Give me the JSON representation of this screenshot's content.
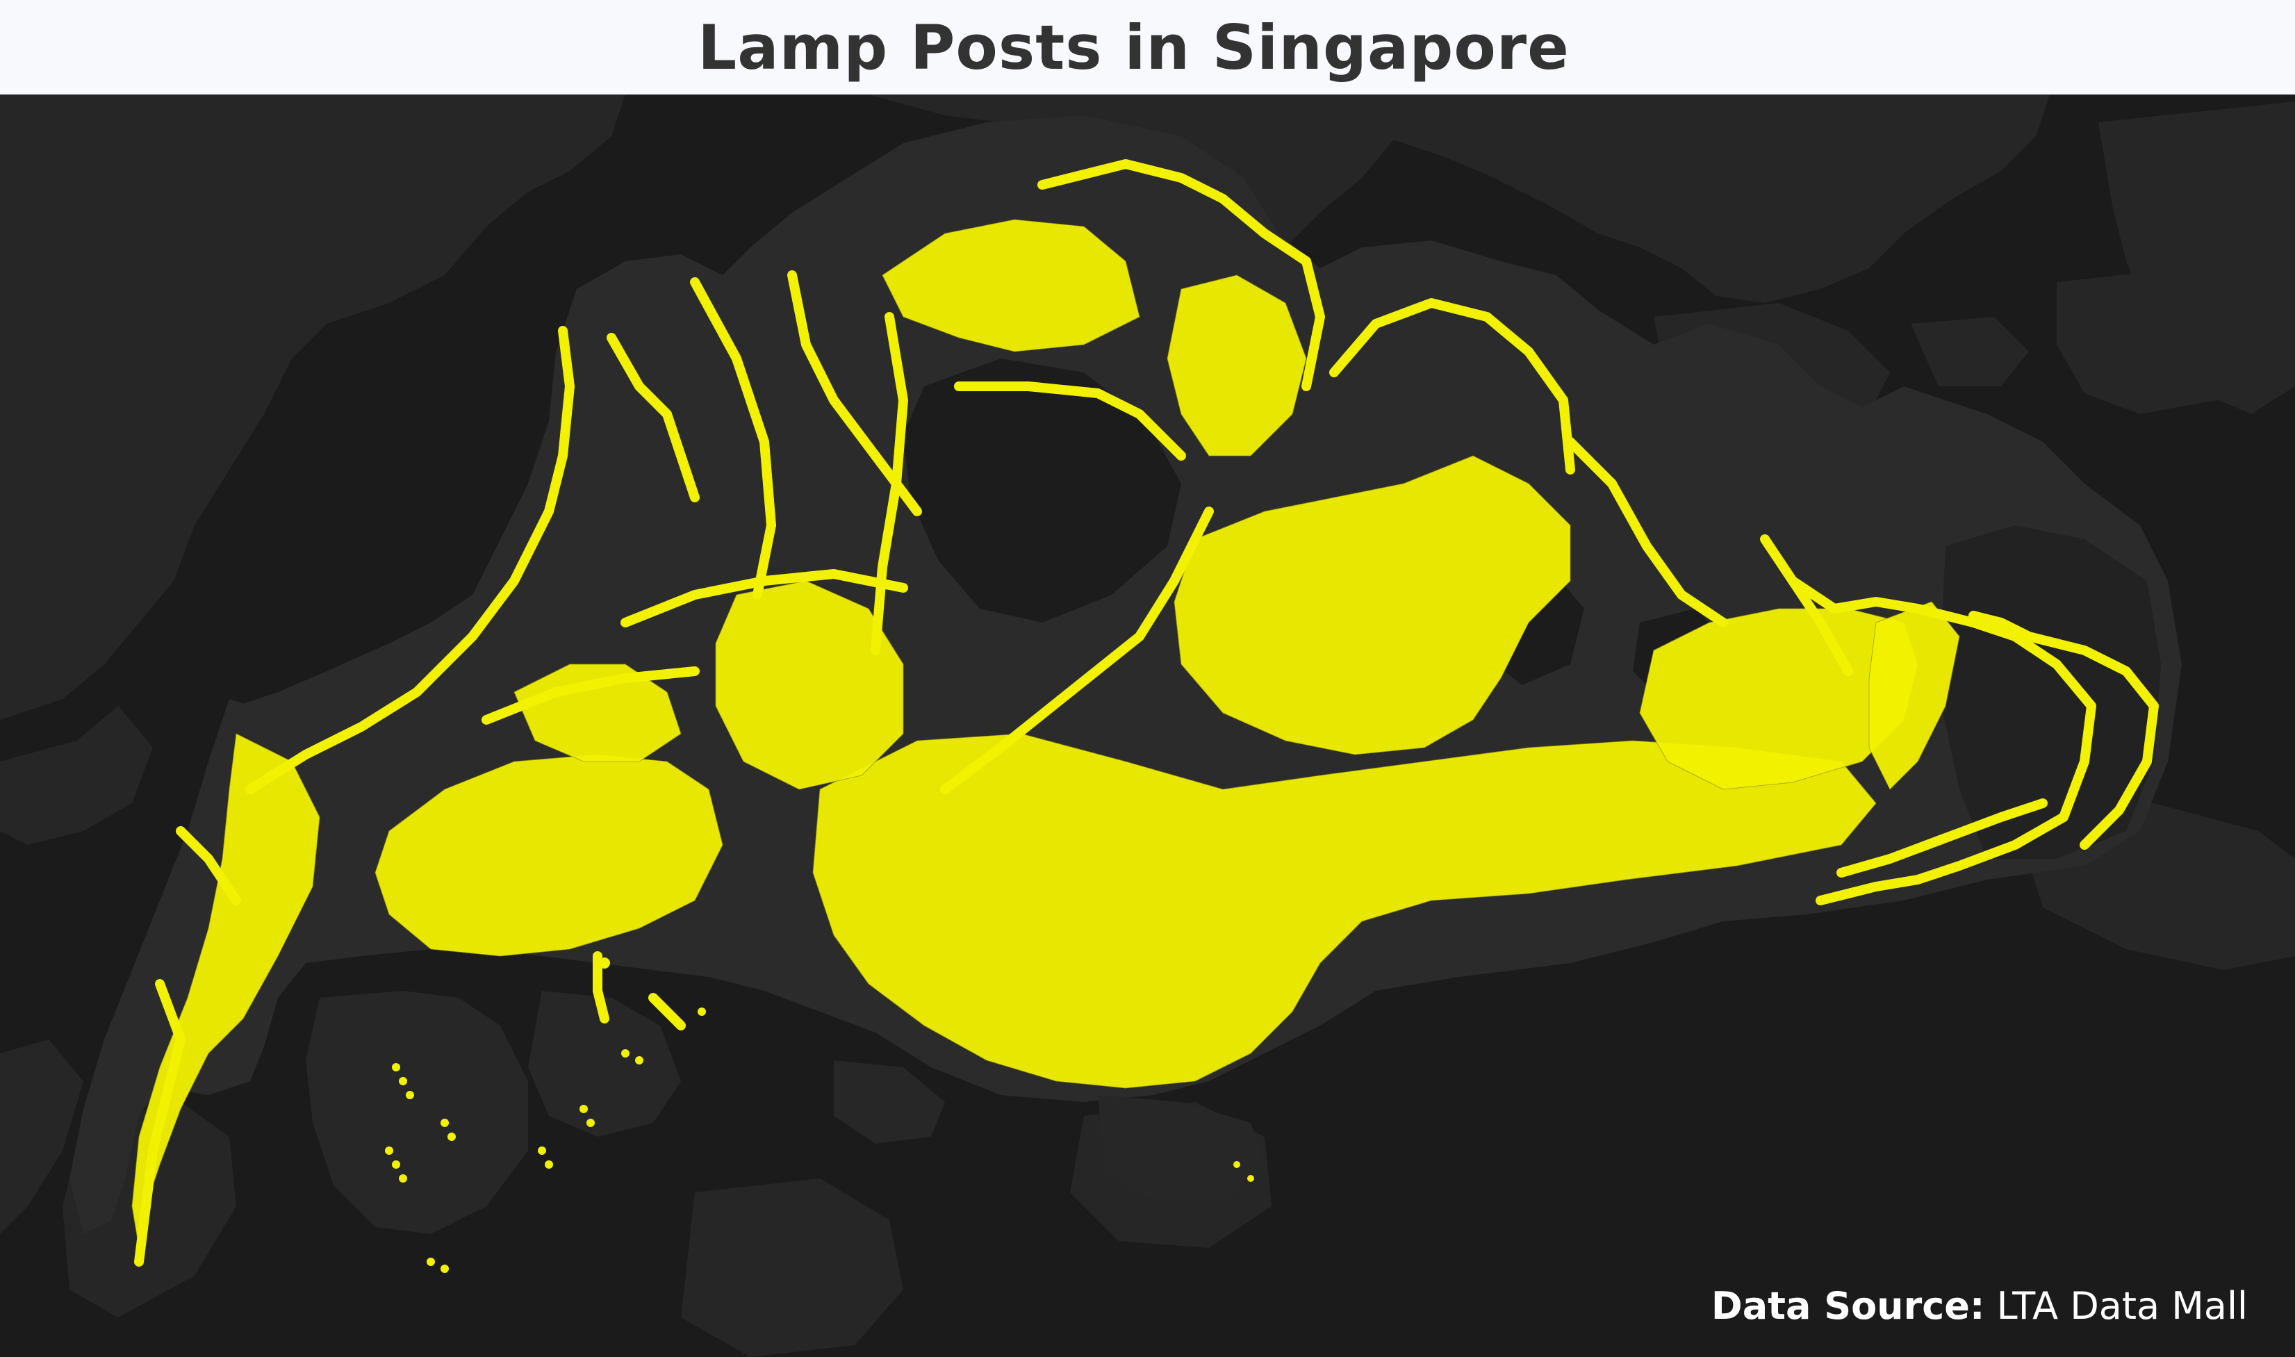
{
  "title": "Lamp Posts in Singapore",
  "source": {
    "label": "Data Source:",
    "value": "LTA Data Mall"
  },
  "colors": {
    "basemap_background": "#1f1f1f",
    "landmass": "#2a2a2a",
    "water": "#171717",
    "lamp_post_points": "#f2f200",
    "title_text": "#333333",
    "title_background": "#f7f9fd"
  },
  "map": {
    "basemap": "dark",
    "marker_shape": "circle"
  }
}
